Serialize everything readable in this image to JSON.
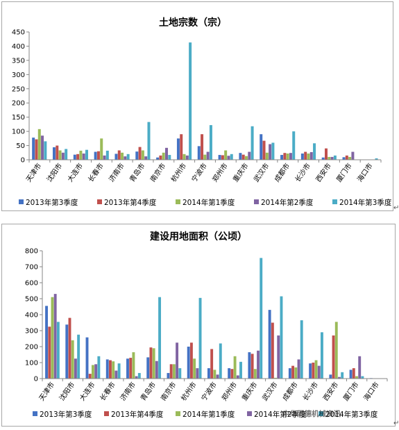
{
  "chart_data": [
    {
      "type": "bar",
      "title": "土地宗数（宗）",
      "xlabel": "",
      "ylabel": "",
      "ylim": [
        0,
        450
      ],
      "yticks": [
        0,
        50,
        100,
        150,
        200,
        250,
        300,
        350,
        400,
        450
      ],
      "grid": false,
      "legend": "bottom",
      "categories": [
        "天津市",
        "沈阳市",
        "大连市",
        "长春市",
        "济南市",
        "青岛市",
        "南京市",
        "杭州市",
        "宁波市",
        "郑州市",
        "重庆市",
        "武汉市",
        "成都市",
        "长沙市",
        "西安市",
        "厦门市",
        "海口市"
      ],
      "series": [
        {
          "name": "2013年第3季度",
          "color": "#4472c4",
          "values": [
            78,
            44,
            18,
            28,
            21,
            29,
            8,
            75,
            48,
            17,
            24,
            90,
            17,
            22,
            8,
            9,
            0
          ]
        },
        {
          "name": "2013年第4季度",
          "color": "#c0504d",
          "values": [
            72,
            50,
            20,
            30,
            33,
            45,
            15,
            90,
            90,
            16,
            18,
            67,
            24,
            28,
            40,
            15,
            0
          ]
        },
        {
          "name": "2014年第1季度",
          "color": "#9bbb59",
          "values": [
            108,
            33,
            32,
            75,
            25,
            33,
            25,
            20,
            18,
            33,
            13,
            25,
            22,
            22,
            10,
            10,
            0
          ]
        },
        {
          "name": "2014年第2季度",
          "color": "#8064a2",
          "values": [
            85,
            25,
            22,
            15,
            12,
            12,
            42,
            15,
            28,
            14,
            28,
            55,
            24,
            27,
            10,
            28,
            0
          ]
        },
        {
          "name": "2014年第3季度",
          "color": "#4bacc6",
          "values": [
            65,
            38,
            35,
            32,
            20,
            133,
            17,
            413,
            122,
            20,
            118,
            60,
            100,
            58,
            15,
            0,
            5
          ]
        }
      ]
    },
    {
      "type": "bar",
      "title": "建设用地面积（公顷）",
      "xlabel": "",
      "ylabel": "",
      "ylim": [
        0,
        800
      ],
      "yticks": [
        0,
        100,
        200,
        300,
        400,
        500,
        600,
        700,
        800
      ],
      "grid": false,
      "legend": "bottom",
      "categories": [
        "天津市",
        "沈阳市",
        "大连市",
        "长春市",
        "济南市",
        "青岛市",
        "南京市",
        "杭州市",
        "宁波市",
        "郑州市",
        "重庆市",
        "武汉市",
        "成都市",
        "长沙市",
        "西安市",
        "厦门市",
        "海口市"
      ],
      "series": [
        {
          "name": "2013年第3季度",
          "color": "#4472c4",
          "values": [
            455,
            338,
            258,
            120,
            125,
            133,
            35,
            200,
            65,
            65,
            165,
            430,
            65,
            95,
            25,
            55,
            3
          ]
        },
        {
          "name": "2013年第4季度",
          "color": "#c0504d",
          "values": [
            325,
            380,
            30,
            115,
            130,
            195,
            90,
            225,
            185,
            60,
            155,
            350,
            80,
            100,
            270,
            65,
            0
          ]
        },
        {
          "name": "2014年第1季度",
          "color": "#9bbb59",
          "values": [
            510,
            240,
            85,
            108,
            165,
            190,
            90,
            125,
            55,
            140,
            60,
            5,
            70,
            115,
            355,
            15,
            0
          ]
        },
        {
          "name": "2014年第2季度",
          "color": "#8064a2",
          "values": [
            530,
            125,
            90,
            50,
            15,
            110,
            225,
            65,
            25,
            20,
            175,
            270,
            120,
            80,
            10,
            140,
            0
          ]
        },
        {
          "name": "2014年第3季度",
          "color": "#4bacc6",
          "values": [
            355,
            275,
            140,
            95,
            35,
            510,
            65,
            505,
            220,
            105,
            755,
            515,
            365,
            290,
            40,
            15,
            0
          ]
        }
      ]
    }
  ],
  "legend_labels_chart2": [
    "2013年第3季度",
    "2013年第4季度",
    "2014年第1季度",
    "2014年第2季度",
    "2014年第3季度"
  ],
  "watermark": "中华同德机械资讯",
  "paragraph_mark": "↵"
}
